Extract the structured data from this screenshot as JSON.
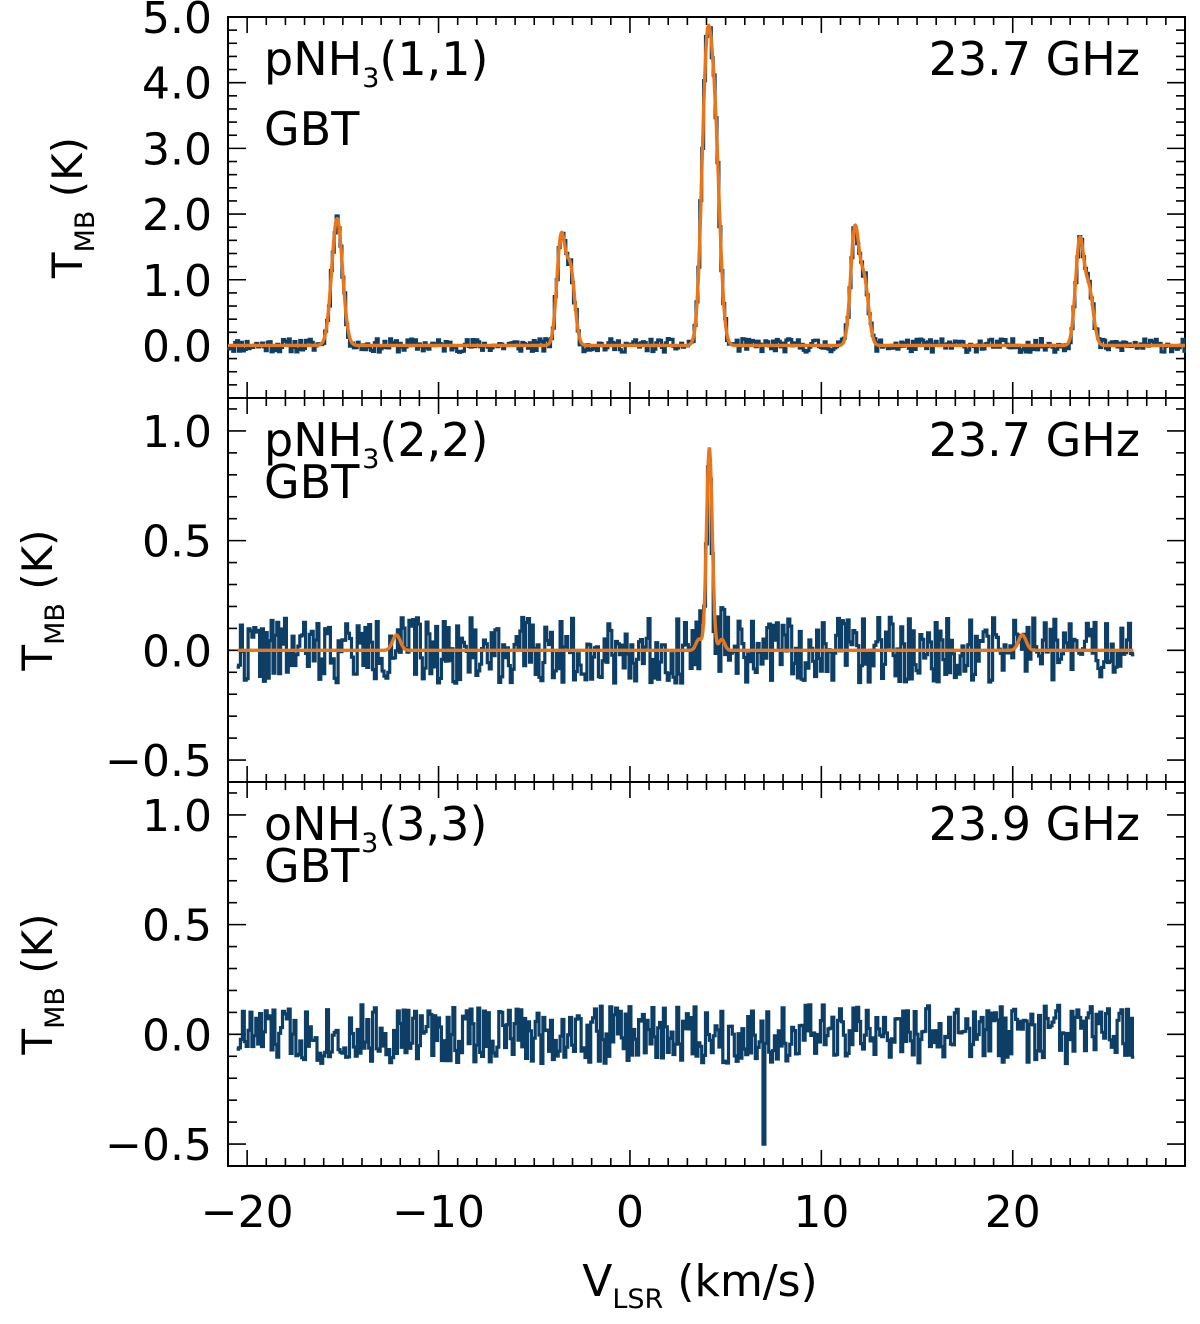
{
  "chart_data": {
    "type": "line",
    "shared_x": {
      "label_main": "V",
      "label_sub": "LSR",
      "label_unit": "(km/s)",
      "range": [
        -21,
        29
      ],
      "ticks": [
        -20,
        -10,
        0,
        10,
        20
      ],
      "tick_labels": [
        "−20",
        "−10",
        "0",
        "10",
        "20"
      ]
    },
    "colors": {
      "data": "#0d3f66",
      "fit": "#e8761a"
    },
    "panels": [
      {
        "id": "p11",
        "molecule": "pNH",
        "molecule_sub": "3",
        "molecule_trans": "(1,1)",
        "telescope": "GBT",
        "frequency": "23.7 GHz",
        "ylabel_main": "T",
        "ylabel_sub": "MB",
        "ylabel_unit": "(K)",
        "ylim": [
          -0.8,
          5.0
        ],
        "yticks": [
          0,
          1,
          2,
          3,
          4,
          5
        ],
        "ytick_labels": [
          "0.0",
          "1.0",
          "2.0",
          "3.0",
          "4.0",
          "5.0"
        ],
        "data_range": [
          -21,
          29
        ],
        "noise": 0.07,
        "seed": 11,
        "fit_components": [
          {
            "v": -15.3,
            "amp": 1.93,
            "width": 0.28
          },
          {
            "v": -3.6,
            "amp": 1.62,
            "width": 0.22
          },
          {
            "v": -3.1,
            "amp": 1.12,
            "width": 0.22
          },
          {
            "v": 4.0,
            "amp": 4.0,
            "width": 0.26
          },
          {
            "v": 4.45,
            "amp": 2.85,
            "width": 0.26
          },
          {
            "v": 11.75,
            "amp": 1.75,
            "width": 0.22
          },
          {
            "v": 12.25,
            "amp": 0.95,
            "width": 0.22
          },
          {
            "v": 23.5,
            "amp": 1.58,
            "width": 0.22
          },
          {
            "v": 24.0,
            "amp": 0.8,
            "width": 0.22
          }
        ]
      },
      {
        "id": "p22",
        "molecule": "pNH",
        "molecule_sub": "3",
        "molecule_trans": "(2,2)",
        "telescope": "GBT",
        "frequency": "23.7 GHz",
        "ylabel_main": "T",
        "ylabel_sub": "MB",
        "ylabel_unit": "(K)",
        "ylim": [
          -0.6,
          1.15
        ],
        "yticks": [
          -0.5,
          0,
          0.5,
          1.0
        ],
        "ytick_labels": [
          "−0.5",
          "0.0",
          "0.5",
          "1.0"
        ],
        "data_range": [
          -20.5,
          26.3
        ],
        "noise": 0.1,
        "seed": 22,
        "fit_components": [
          {
            "v": -12.2,
            "amp": 0.07,
            "width": 0.2
          },
          {
            "v": 3.6,
            "amp": 0.05,
            "width": 0.15
          },
          {
            "v": 4.15,
            "amp": 0.92,
            "width": 0.15
          },
          {
            "v": 4.8,
            "amp": 0.05,
            "width": 0.15
          },
          {
            "v": 20.5,
            "amp": 0.07,
            "width": 0.2
          }
        ]
      },
      {
        "id": "o33",
        "molecule": "oNH",
        "molecule_sub": "3",
        "molecule_trans": "(3,3)",
        "telescope": "GBT",
        "frequency": "23.9 GHz",
        "ylabel_main": "T",
        "ylabel_sub": "MB",
        "ylabel_unit": "(K)",
        "ylim": [
          -0.6,
          1.15
        ],
        "yticks": [
          -0.5,
          0,
          0.5,
          1.0
        ],
        "ytick_labels": [
          "−0.5",
          "0.0",
          "0.5",
          "1.0"
        ],
        "data_range": [
          -20.5,
          26.3
        ],
        "noise": 0.09,
        "seed": 33,
        "dip": {
          "v": 7.0,
          "value": -0.5
        },
        "fit_components": []
      }
    ]
  }
}
